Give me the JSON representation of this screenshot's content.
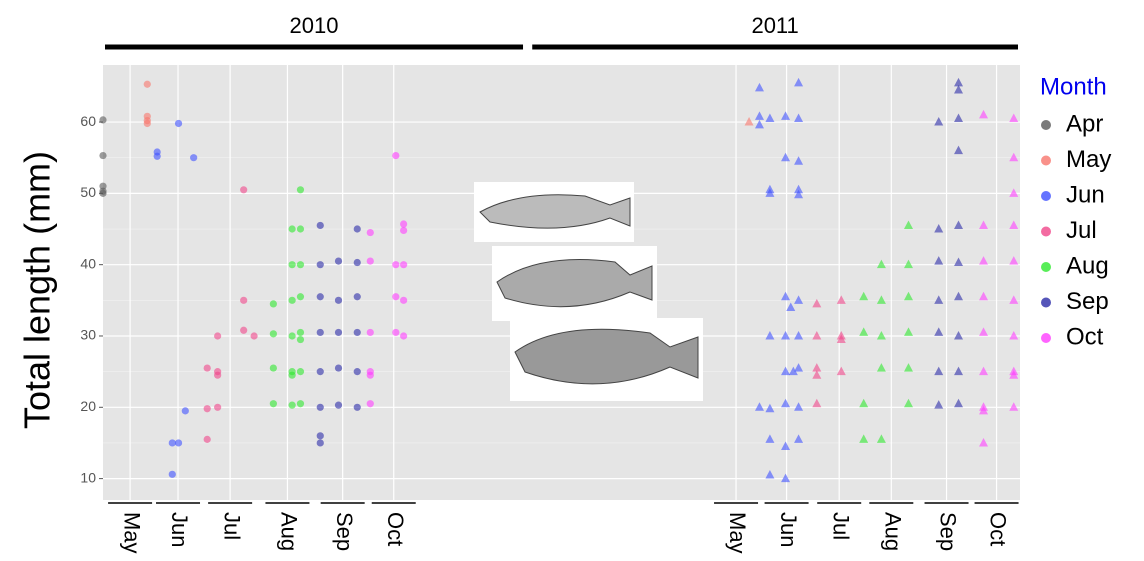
{
  "chart_data": {
    "type": "scatter",
    "y_label": "Total length (mm)",
    "legend_title": "Month",
    "legend_title_color": "#0000ee",
    "ylim": [
      7,
      68
    ],
    "yticks": [
      10,
      20,
      30,
      40,
      50,
      60
    ],
    "xlim": [
      0,
      17.6
    ],
    "facets": [
      {
        "label": "2010",
        "marker": "circle",
        "xlim": [
          0,
          8.1
        ]
      },
      {
        "label": "2011",
        "marker": "triangle",
        "xlim": [
          8.2,
          17.6
        ]
      }
    ],
    "xticks": [
      {
        "value": 0.52,
        "label": "May"
      },
      {
        "value": 1.44,
        "label": "Jun"
      },
      {
        "value": 2.44,
        "label": "Jul"
      },
      {
        "value": 3.54,
        "label": "Aug"
      },
      {
        "value": 4.6,
        "label": "Sep"
      },
      {
        "value": 5.58,
        "label": "Oct"
      },
      {
        "value": 12.15,
        "label": "May"
      },
      {
        "value": 13.12,
        "label": "Jun"
      },
      {
        "value": 14.13,
        "label": "Jul"
      },
      {
        "value": 15.13,
        "label": "Aug"
      },
      {
        "value": 16.19,
        "label": "Sep"
      },
      {
        "value": 17.15,
        "label": "Oct"
      }
    ],
    "grid": true,
    "series": [
      {
        "name": "Apr",
        "color": "#595959",
        "x": [
          0,
          0,
          0,
          0,
          0
        ],
        "values": [
          60.3,
          55.3,
          51,
          50.3,
          50
        ]
      },
      {
        "name": "May",
        "color": "#f8766d",
        "x": [
          0.85,
          0.85,
          0.85,
          0.85,
          12.4
        ],
        "values": [
          65.3,
          60.8,
          60.2,
          59.8,
          60
        ]
      },
      {
        "name": "Jun",
        "color": "#3f51ff",
        "x": [
          1.04,
          1.04,
          1.33,
          1.45,
          1.33,
          1.45,
          1.58,
          1.74,
          12.6,
          12.6,
          12.6,
          12.8,
          12.8,
          12.8,
          12.8,
          12.8,
          12.8,
          12.8,
          12.6,
          13.1,
          13.1,
          13.1,
          13.1,
          13.1,
          13.1,
          13.1,
          13.1,
          13.35,
          13.35,
          13.35,
          13.35,
          13.35,
          13.35,
          13.35,
          13.35,
          13.35,
          13.35,
          13.2,
          13.25
        ],
        "values": [
          55.8,
          55.2,
          15,
          15,
          10.6,
          59.8,
          19.5,
          55,
          64.8,
          60.8,
          59.6,
          60.5,
          50.5,
          50,
          19.8,
          15.5,
          10.5,
          30,
          20,
          60.8,
          55,
          35.5,
          20.5,
          10,
          14.5,
          25,
          30,
          65.5,
          60.5,
          54.5,
          50.5,
          49.8,
          35,
          30,
          25.5,
          20,
          15.5,
          34,
          25
        ]
      },
      {
        "name": "Jul",
        "color": "#f0468a",
        "x": [
          2.0,
          2.0,
          2.0,
          2.2,
          2.2,
          2.2,
          2.2,
          2.7,
          2.7,
          2.7,
          2.9,
          13.7,
          13.7,
          13.7,
          13.7,
          13.7,
          14.17,
          14.17,
          14.17,
          14.17
        ],
        "values": [
          15.5,
          19.8,
          25.5,
          30,
          25,
          20,
          24.5,
          50.5,
          35,
          30.8,
          30,
          34.5,
          30,
          25.5,
          24.5,
          20.5,
          30,
          29.5,
          25,
          35
        ]
      },
      {
        "name": "Aug",
        "color": "#2ee82e",
        "x": [
          3.27,
          3.27,
          3.27,
          3.27,
          3.63,
          3.63,
          3.63,
          3.63,
          3.63,
          3.63,
          3.63,
          3.79,
          3.79,
          3.79,
          3.79,
          3.79,
          3.79,
          3.79,
          3.79,
          14.6,
          14.6,
          14.6,
          14.6,
          14.94,
          14.94,
          14.94,
          14.94,
          14.94,
          15.46,
          15.46,
          15.46,
          15.46,
          15.46,
          15.46
        ],
        "values": [
          34.5,
          30.3,
          25.5,
          20.5,
          45,
          40,
          35,
          30,
          25,
          24.5,
          20.3,
          50.5,
          45,
          40,
          35.5,
          30.5,
          25,
          20.5,
          29.5,
          35.5,
          30.5,
          20.5,
          15.5,
          40,
          35,
          30,
          25.5,
          15.5,
          45.5,
          40,
          35.5,
          30.5,
          25.5,
          20.5
        ]
      },
      {
        "name": "Sep",
        "color": "#2b2ba8",
        "x": [
          4.17,
          4.17,
          4.17,
          4.17,
          4.17,
          4.17,
          4.17,
          4.17,
          4.52,
          4.52,
          4.52,
          4.52,
          4.52,
          4.88,
          4.88,
          4.88,
          4.88,
          4.88,
          4.88,
          16.04,
          16.04,
          16.04,
          16.04,
          16.04,
          16.04,
          16.04,
          16.42,
          16.42,
          16.42,
          16.42,
          16.42,
          16.42,
          16.42,
          16.42,
          16.42,
          16.42
        ],
        "values": [
          45.5,
          40,
          35.5,
          30.5,
          25,
          20,
          15,
          16,
          40.5,
          35,
          30.5,
          25.5,
          20.3,
          45,
          40.3,
          35.5,
          30.5,
          25,
          20,
          60,
          45,
          40.5,
          35,
          30.5,
          25,
          20.3,
          65.5,
          64.5,
          60.5,
          56,
          45.5,
          40.3,
          35.5,
          30,
          25,
          20.5
        ]
      },
      {
        "name": "Oct",
        "color": "#ff3dff",
        "x": [
          5.13,
          5.13,
          5.13,
          5.13,
          5.13,
          5.13,
          5.62,
          5.62,
          5.62,
          5.62,
          5.77,
          5.77,
          5.77,
          5.77,
          5.77,
          16.9,
          16.9,
          16.9,
          16.9,
          16.9,
          16.9,
          16.9,
          16.9,
          16.9,
          17.48,
          17.48,
          17.48,
          17.48,
          17.48,
          17.48,
          17.48,
          17.48,
          17.48,
          17.48
        ],
        "values": [
          44.5,
          40.5,
          30.5,
          25,
          24.5,
          20.5,
          55.3,
          40,
          35.5,
          30.5,
          45.7,
          40,
          35,
          30,
          44.8,
          61,
          45.5,
          40.5,
          35.5,
          30.5,
          25,
          20,
          15,
          19.5,
          60.5,
          55,
          50,
          45.5,
          40.5,
          35,
          30,
          25,
          20,
          24.5
        ]
      }
    ]
  }
}
